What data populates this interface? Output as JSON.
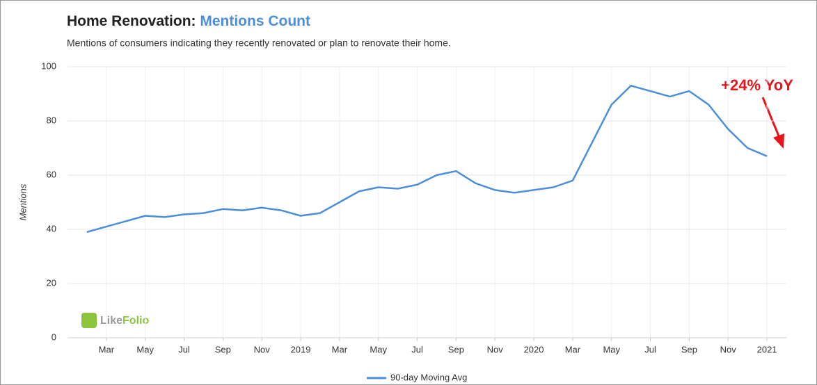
{
  "chart_data": {
    "type": "line",
    "title": "Home Renovation:",
    "title_highlight": "Mentions Count",
    "subtitle": "Mentions of consumers indicating they recently renovated or plan to renovate their home.",
    "y_label": "Mentions",
    "annotation": "+24% YoY",
    "watermark": [
      "Like",
      "Folio"
    ],
    "x": [
      "2018-02",
      "2018-03",
      "2018-04",
      "2018-05",
      "2018-06",
      "2018-07",
      "2018-08",
      "2018-09",
      "2018-10",
      "2018-11",
      "2018-12",
      "2019-01",
      "2019-02",
      "2019-03",
      "2019-04",
      "2019-05",
      "2019-06",
      "2019-07",
      "2019-08",
      "2019-09",
      "2019-10",
      "2019-11",
      "2019-12",
      "2020-01",
      "2020-02",
      "2020-03",
      "2020-04",
      "2020-05",
      "2020-06",
      "2020-07",
      "2020-08",
      "2020-09",
      "2020-10",
      "2020-11",
      "2020-12",
      "2021-01"
    ],
    "series": [
      {
        "name": "90-day Moving Avg",
        "color": "#4a8fd8",
        "values": [
          39,
          41,
          43,
          45,
          44.5,
          45.5,
          46,
          47.5,
          47,
          48,
          47,
          45,
          46,
          50,
          54,
          55.5,
          55,
          56.5,
          60,
          61.5,
          57,
          54.5,
          53.5,
          54.5,
          55.5,
          58,
          72,
          86,
          93,
          91,
          89,
          91,
          86,
          77,
          70,
          67
        ]
      }
    ],
    "xlim": [
      "2018-01",
      "2021-02"
    ],
    "xticks": [
      {
        "value": "2018-03",
        "label": "Mar"
      },
      {
        "value": "2018-05",
        "label": "May"
      },
      {
        "value": "2018-07",
        "label": "Jul"
      },
      {
        "value": "2018-09",
        "label": "Sep"
      },
      {
        "value": "2018-11",
        "label": "Nov"
      },
      {
        "value": "2019-01",
        "label": "2019"
      },
      {
        "value": "2019-03",
        "label": "Mar"
      },
      {
        "value": "2019-05",
        "label": "May"
      },
      {
        "value": "2019-07",
        "label": "Jul"
      },
      {
        "value": "2019-09",
        "label": "Sep"
      },
      {
        "value": "2019-11",
        "label": "Nov"
      },
      {
        "value": "2020-01",
        "label": "2020"
      },
      {
        "value": "2020-03",
        "label": "Mar"
      },
      {
        "value": "2020-05",
        "label": "May"
      },
      {
        "value": "2020-07",
        "label": "Jul"
      },
      {
        "value": "2020-09",
        "label": "Sep"
      },
      {
        "value": "2020-11",
        "label": "Nov"
      },
      {
        "value": "2021-01",
        "label": "2021"
      }
    ],
    "ylim": [
      0,
      100
    ],
    "yticks": [
      0,
      20,
      40,
      60,
      80,
      100
    ],
    "grid": true
  }
}
